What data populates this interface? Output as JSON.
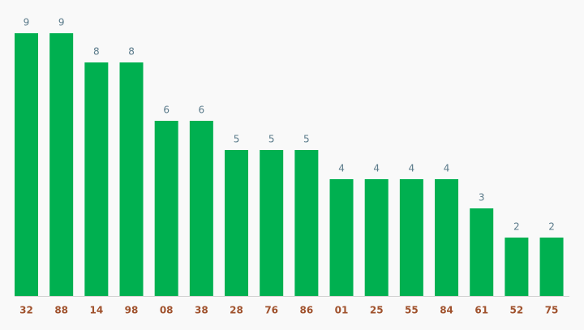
{
  "chart_data": {
    "type": "bar",
    "categories": [
      "32",
      "88",
      "14",
      "98",
      "08",
      "38",
      "28",
      "76",
      "86",
      "01",
      "25",
      "55",
      "84",
      "61",
      "52",
      "75"
    ],
    "values": [
      9,
      9,
      8,
      8,
      6,
      6,
      5,
      5,
      5,
      4,
      4,
      4,
      4,
      3,
      2,
      2
    ],
    "color": "#00b050"
  }
}
